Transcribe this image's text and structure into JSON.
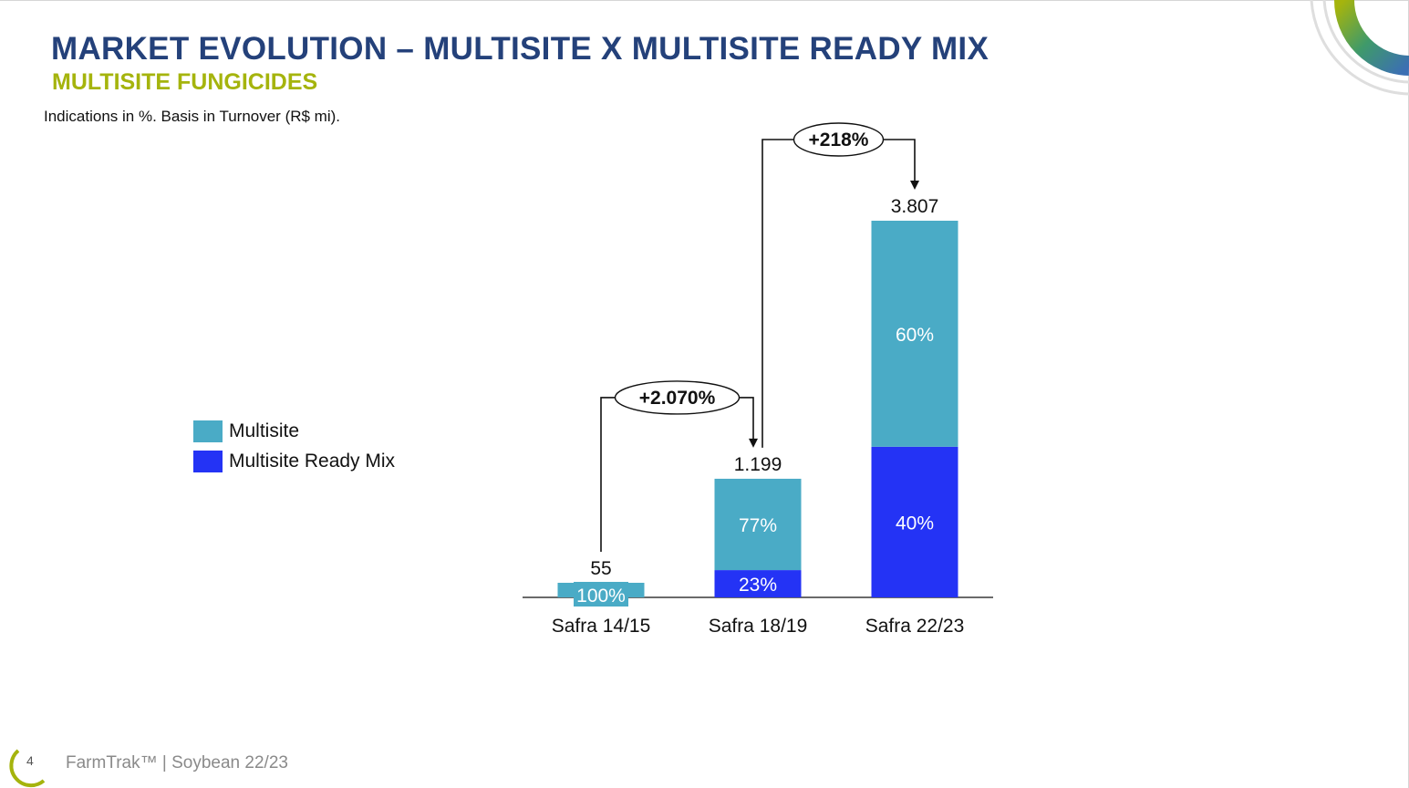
{
  "header": {
    "title": "MARKET EVOLUTION – MULTISITE X MULTISITE READY MIX",
    "subtitle": "MULTISITE FUNGICIDES",
    "note": "Indications in %. Basis in Turnover (R$ mi)."
  },
  "legend": [
    {
      "label": "Multisite",
      "color": "#4aabc6"
    },
    {
      "label": "Multisite Ready Mix",
      "color": "#2433f5"
    }
  ],
  "chart_data": {
    "type": "bar",
    "stacked": true,
    "categories": [
      "Safra 14/15",
      "Safra 18/19",
      "Safra 22/23"
    ],
    "totals": [
      55,
      1199,
      3807
    ],
    "total_labels": [
      "55",
      "1.199",
      "3.807"
    ],
    "series": [
      {
        "name": "Multisite Ready Mix",
        "color": "#2433f5",
        "share": [
          0,
          23,
          40
        ],
        "labels": [
          "",
          "23%",
          "40%"
        ]
      },
      {
        "name": "Multisite",
        "color": "#4aabc6",
        "share": [
          100,
          77,
          60
        ],
        "labels": [
          "100%",
          "77%",
          "60%"
        ]
      }
    ],
    "growth": [
      {
        "from": 0,
        "to": 1,
        "label": "+2.070%"
      },
      {
        "from": 1,
        "to": 2,
        "label": "+218%"
      }
    ],
    "ylim": [
      0,
      3807
    ]
  },
  "footer": {
    "page_number": "4",
    "text": "FarmTrak™ | Soybean 22/23"
  }
}
